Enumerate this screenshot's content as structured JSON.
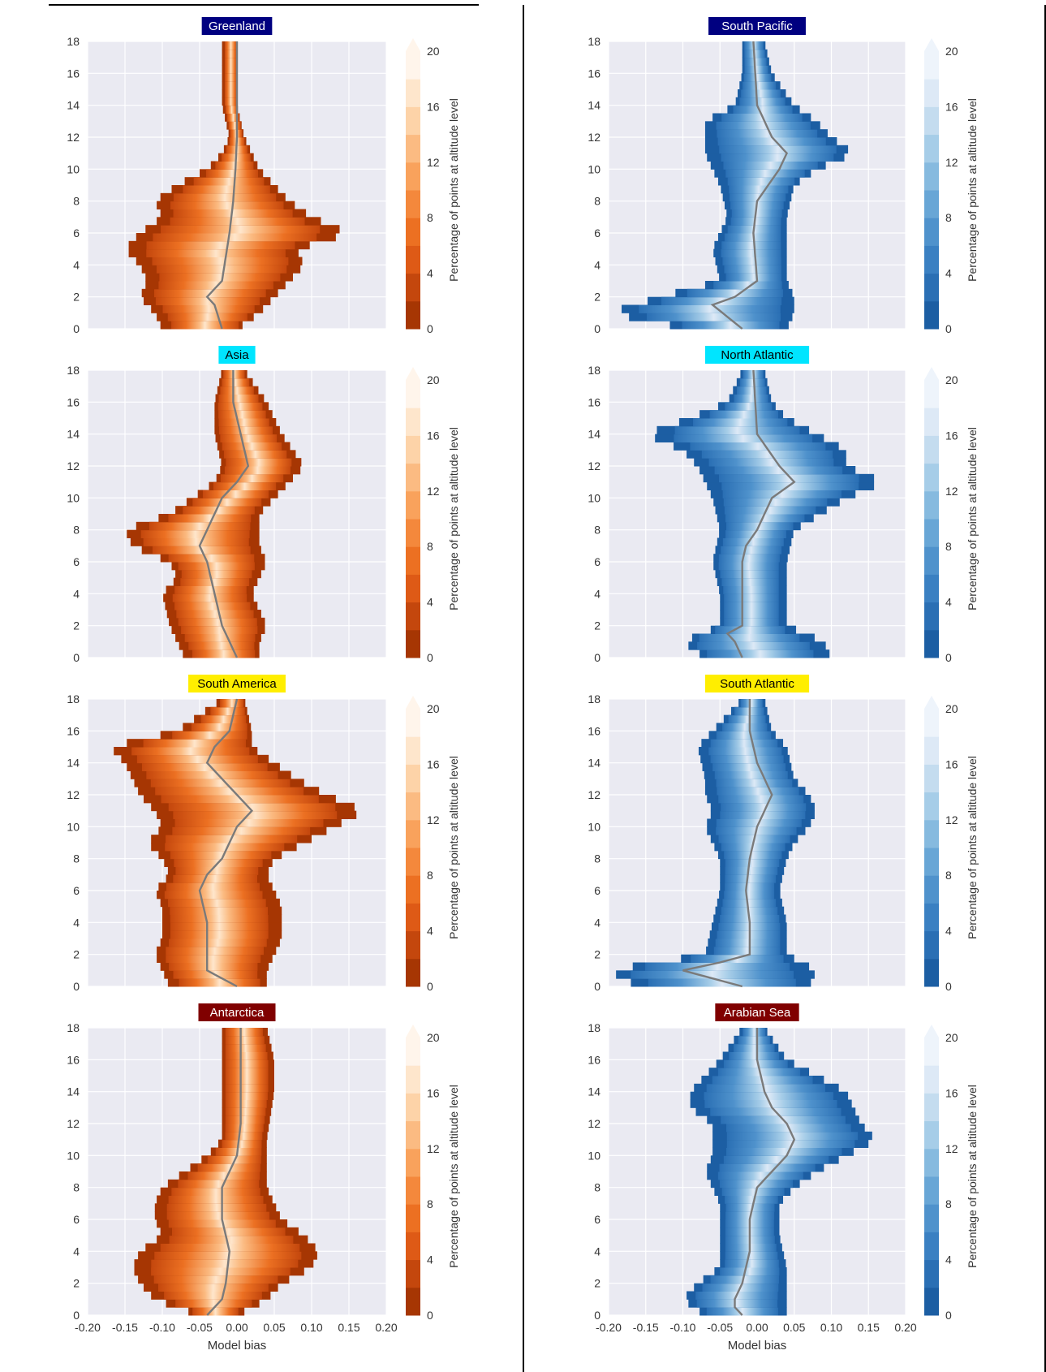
{
  "figure": {
    "xlabel": "Model bias",
    "colorbar_label": "Percentage of points at altitude level"
  },
  "colors": {
    "plot_background": "#eaeaf2",
    "grid": "#ffffff",
    "mean_line": "#7a7a7a",
    "divider": "#000000"
  },
  "chart_data": [
    {
      "type": "heatmap",
      "title": "Greenland",
      "title_bg": "#000080",
      "title_fg": "#ffffff",
      "palette": "orange",
      "xlim": [
        -0.2,
        0.2
      ],
      "ylim": [
        0,
        18
      ],
      "xticks": [
        "-0.20",
        "-0.15",
        "-0.10",
        "-0.05",
        "0.00",
        "0.05",
        "0.10",
        "0.15",
        "0.20"
      ],
      "yticks": [
        "0",
        "2",
        "4",
        "6",
        "8",
        "10",
        "12",
        "14",
        "16",
        "18"
      ],
      "colorbar_ticks": [
        "0",
        "4",
        "8",
        "12",
        "16",
        "20"
      ],
      "show_xticks": false,
      "show_xlabel": false,
      "profile": [
        [
          0,
          -0.1,
          0.0
        ],
        [
          1,
          -0.11,
          0.03
        ],
        [
          2,
          -0.13,
          0.05
        ],
        [
          3,
          -0.12,
          0.07
        ],
        [
          4,
          -0.13,
          0.09
        ],
        [
          5,
          -0.15,
          0.08
        ],
        [
          6,
          -0.13,
          0.15
        ],
        [
          7,
          -0.1,
          0.1
        ],
        [
          8,
          -0.11,
          0.07
        ],
        [
          9,
          -0.08,
          0.05
        ],
        [
          10,
          -0.04,
          0.03
        ],
        [
          11,
          -0.02,
          0.02
        ],
        [
          12,
          -0.01,
          0.01
        ],
        [
          14,
          -0.02,
          0.0
        ],
        [
          18,
          -0.02,
          0.0
        ]
      ],
      "mean_line": [
        [
          0,
          -0.02
        ],
        [
          1.5,
          -0.03
        ],
        [
          2,
          -0.04
        ],
        [
          3,
          -0.02
        ],
        [
          6,
          -0.01
        ],
        [
          8,
          -0.005
        ],
        [
          10,
          -0.002
        ],
        [
          12,
          0.0
        ],
        [
          18,
          0.0
        ]
      ]
    },
    {
      "type": "heatmap",
      "title": "South Pacific",
      "title_bg": "#000080",
      "title_fg": "#ffffff",
      "palette": "blue",
      "xlim": [
        -0.2,
        0.2
      ],
      "ylim": [
        0,
        18
      ],
      "xticks": [
        "-0.20",
        "-0.15",
        "-0.10",
        "-0.05",
        "0.00",
        "0.05",
        "0.10",
        "0.15",
        "0.20"
      ],
      "yticks": [
        "0",
        "2",
        "4",
        "6",
        "8",
        "10",
        "12",
        "14",
        "16",
        "18"
      ],
      "colorbar_ticks": [
        "0",
        "4",
        "8",
        "12",
        "16",
        "20"
      ],
      "show_xticks": false,
      "show_xlabel": false,
      "profile": [
        [
          0,
          -0.09,
          0.04
        ],
        [
          1,
          -0.2,
          0.05
        ],
        [
          2,
          -0.13,
          0.05
        ],
        [
          3,
          -0.05,
          0.04
        ],
        [
          5,
          -0.06,
          0.04
        ],
        [
          7,
          -0.04,
          0.04
        ],
        [
          9,
          -0.05,
          0.05
        ],
        [
          10,
          -0.06,
          0.08
        ],
        [
          11,
          -0.07,
          0.13
        ],
        [
          12,
          -0.07,
          0.1
        ],
        [
          13,
          -0.07,
          0.08
        ],
        [
          14,
          -0.03,
          0.05
        ],
        [
          16,
          -0.02,
          0.02
        ],
        [
          18,
          -0.02,
          0.01
        ]
      ],
      "mean_line": [
        [
          0,
          -0.02
        ],
        [
          1.5,
          -0.06
        ],
        [
          2,
          -0.03
        ],
        [
          3,
          0.0
        ],
        [
          6,
          -0.005
        ],
        [
          8,
          0.0
        ],
        [
          10,
          0.03
        ],
        [
          11,
          0.04
        ],
        [
          12,
          0.02
        ],
        [
          14,
          0.0
        ],
        [
          18,
          -0.005
        ]
      ]
    },
    {
      "type": "heatmap",
      "title": "Asia",
      "title_bg": "#00e5ff",
      "title_fg": "#000000",
      "palette": "orange",
      "xlim": [
        -0.2,
        0.2
      ],
      "ylim": [
        0,
        18
      ],
      "xticks": [
        "-0.20",
        "-0.15",
        "-0.10",
        "-0.05",
        "0.00",
        "0.05",
        "0.10",
        "0.15",
        "0.20"
      ],
      "yticks": [
        "0",
        "2",
        "4",
        "6",
        "8",
        "10",
        "12",
        "14",
        "16",
        "18"
      ],
      "colorbar_ticks": [
        "0",
        "4",
        "8",
        "12",
        "16",
        "20"
      ],
      "show_xticks": false,
      "show_xlabel": false,
      "profile": [
        [
          0,
          -0.07,
          0.03
        ],
        [
          1,
          -0.08,
          0.03
        ],
        [
          2,
          -0.09,
          0.04
        ],
        [
          4,
          -0.1,
          0.02
        ],
        [
          5,
          -0.08,
          0.03
        ],
        [
          6,
          -0.09,
          0.04
        ],
        [
          7,
          -0.14,
          0.03
        ],
        [
          8,
          -0.15,
          0.03
        ],
        [
          9,
          -0.09,
          0.03
        ],
        [
          10,
          -0.06,
          0.05
        ],
        [
          11,
          -0.03,
          0.07
        ],
        [
          12,
          -0.02,
          0.09
        ],
        [
          14,
          -0.03,
          0.06
        ],
        [
          16,
          -0.03,
          0.04
        ],
        [
          18,
          -0.02,
          0.01
        ]
      ],
      "mean_line": [
        [
          0,
          0.0
        ],
        [
          2,
          -0.02
        ],
        [
          4,
          -0.03
        ],
        [
          6,
          -0.04
        ],
        [
          7,
          -0.05
        ],
        [
          8,
          -0.04
        ],
        [
          10,
          -0.02
        ],
        [
          11,
          0.0
        ],
        [
          12,
          0.015
        ],
        [
          14,
          0.005
        ],
        [
          16,
          -0.005
        ],
        [
          18,
          -0.005
        ]
      ]
    },
    {
      "type": "heatmap",
      "title": "North Atlantic",
      "title_bg": "#00e5ff",
      "title_fg": "#000000",
      "palette": "blue",
      "xlim": [
        -0.2,
        0.2
      ],
      "ylim": [
        0,
        18
      ],
      "xticks": [
        "-0.20",
        "-0.15",
        "-0.10",
        "-0.05",
        "0.00",
        "0.05",
        "0.10",
        "0.15",
        "0.20"
      ],
      "yticks": [
        "0",
        "2",
        "4",
        "6",
        "8",
        "10",
        "12",
        "14",
        "16",
        "18"
      ],
      "colorbar_ticks": [
        "0",
        "4",
        "8",
        "12",
        "16",
        "20"
      ],
      "show_xticks": false,
      "show_xlabel": false,
      "profile": [
        [
          0,
          -0.07,
          0.1
        ],
        [
          1,
          -0.1,
          0.09
        ],
        [
          2,
          -0.05,
          0.04
        ],
        [
          4,
          -0.05,
          0.04
        ],
        [
          6,
          -0.06,
          0.04
        ],
        [
          8,
          -0.05,
          0.05
        ],
        [
          10,
          -0.06,
          0.12
        ],
        [
          11,
          -0.07,
          0.17
        ],
        [
          12,
          -0.08,
          0.12
        ],
        [
          13,
          -0.1,
          0.12
        ],
        [
          14,
          -0.15,
          0.08
        ],
        [
          15,
          -0.09,
          0.04
        ],
        [
          16,
          -0.04,
          0.02
        ],
        [
          18,
          -0.02,
          0.01
        ]
      ],
      "mean_line": [
        [
          0,
          -0.02
        ],
        [
          1,
          -0.03
        ],
        [
          1.5,
          -0.04
        ],
        [
          2,
          -0.02
        ],
        [
          4,
          -0.02
        ],
        [
          6,
          -0.02
        ],
        [
          7,
          -0.015
        ],
        [
          8,
          0.0
        ],
        [
          10,
          0.02
        ],
        [
          11,
          0.05
        ],
        [
          12,
          0.03
        ],
        [
          14,
          0.0
        ],
        [
          18,
          -0.005
        ]
      ]
    },
    {
      "type": "heatmap",
      "title": "South America",
      "title_bg": "#ffee00",
      "title_fg": "#000000",
      "palette": "orange",
      "xlim": [
        -0.2,
        0.2
      ],
      "ylim": [
        0,
        18
      ],
      "xticks": [
        "-0.20",
        "-0.15",
        "-0.10",
        "-0.05",
        "0.00",
        "0.05",
        "0.10",
        "0.15",
        "0.20"
      ],
      "yticks": [
        "0",
        "2",
        "4",
        "6",
        "8",
        "10",
        "12",
        "14",
        "16",
        "18"
      ],
      "colorbar_ticks": [
        "0",
        "4",
        "8",
        "12",
        "16",
        "20"
      ],
      "show_xticks": false,
      "show_xlabel": false,
      "profile": [
        [
          0,
          -0.09,
          0.04
        ],
        [
          1,
          -0.1,
          0.04
        ],
        [
          2,
          -0.11,
          0.05
        ],
        [
          3,
          -0.1,
          0.06
        ],
        [
          5,
          -0.1,
          0.06
        ],
        [
          6,
          -0.11,
          0.05
        ],
        [
          7,
          -0.09,
          0.04
        ],
        [
          8,
          -0.1,
          0.05
        ],
        [
          9,
          -0.12,
          0.09
        ],
        [
          10,
          -0.1,
          0.13
        ],
        [
          11,
          -0.11,
          0.17
        ],
        [
          12,
          -0.13,
          0.12
        ],
        [
          13,
          -0.14,
          0.08
        ],
        [
          14,
          -0.15,
          0.05
        ],
        [
          15,
          -0.17,
          0.02
        ],
        [
          16,
          -0.08,
          0.02
        ],
        [
          18,
          -0.02,
          0.01
        ]
      ],
      "mean_line": [
        [
          0,
          0.0
        ],
        [
          0.5,
          -0.02
        ],
        [
          1,
          -0.04
        ],
        [
          4,
          -0.04
        ],
        [
          6,
          -0.05
        ],
        [
          7,
          -0.04
        ],
        [
          8,
          -0.02
        ],
        [
          10,
          0.0
        ],
        [
          11,
          0.02
        ],
        [
          12,
          0.0
        ],
        [
          13,
          -0.02
        ],
        [
          14,
          -0.04
        ],
        [
          15,
          -0.03
        ],
        [
          16,
          -0.01
        ],
        [
          18,
          0.0
        ]
      ]
    },
    {
      "type": "heatmap",
      "title": "South Atlantic",
      "title_bg": "#ffee00",
      "title_fg": "#000000",
      "palette": "blue",
      "xlim": [
        -0.2,
        0.2
      ],
      "ylim": [
        0,
        18
      ],
      "xticks": [
        "-0.20",
        "-0.15",
        "-0.10",
        "-0.05",
        "0.00",
        "0.05",
        "0.10",
        "0.15",
        "0.20"
      ],
      "yticks": [
        "0",
        "2",
        "4",
        "6",
        "8",
        "10",
        "12",
        "14",
        "16",
        "18"
      ],
      "colorbar_ticks": [
        "0",
        "4",
        "8",
        "12",
        "16",
        "20"
      ],
      "show_xticks": false,
      "show_xlabel": false,
      "profile": [
        [
          0,
          -0.16,
          0.07
        ],
        [
          1,
          -0.2,
          0.08
        ],
        [
          2,
          -0.07,
          0.04
        ],
        [
          4,
          -0.06,
          0.04
        ],
        [
          6,
          -0.05,
          0.03
        ],
        [
          8,
          -0.05,
          0.04
        ],
        [
          9,
          -0.06,
          0.05
        ],
        [
          10,
          -0.07,
          0.07
        ],
        [
          11,
          -0.06,
          0.08
        ],
        [
          12,
          -0.07,
          0.07
        ],
        [
          13,
          -0.07,
          0.05
        ],
        [
          15,
          -0.08,
          0.04
        ],
        [
          16,
          -0.06,
          0.02
        ],
        [
          18,
          -0.02,
          0.01
        ]
      ],
      "mean_line": [
        [
          0,
          -0.02
        ],
        [
          0.5,
          -0.06
        ],
        [
          1,
          -0.1
        ],
        [
          1.5,
          -0.05
        ],
        [
          2,
          -0.01
        ],
        [
          4,
          -0.01
        ],
        [
          6,
          -0.015
        ],
        [
          8,
          -0.01
        ],
        [
          10,
          0.0
        ],
        [
          11,
          0.01
        ],
        [
          12,
          0.02
        ],
        [
          14,
          0.0
        ],
        [
          16,
          -0.01
        ],
        [
          18,
          -0.01
        ]
      ]
    },
    {
      "type": "heatmap",
      "title": "Antarctica",
      "title_bg": "#800000",
      "title_fg": "#ffffff",
      "palette": "orange",
      "xlim": [
        -0.2,
        0.2
      ],
      "ylim": [
        0,
        18
      ],
      "xticks": [
        "-0.20",
        "-0.15",
        "-0.10",
        "-0.05",
        "0.00",
        "0.05",
        "0.10",
        "0.15",
        "0.20"
      ],
      "yticks": [
        "0",
        "2",
        "4",
        "6",
        "8",
        "10",
        "12",
        "14",
        "16",
        "18"
      ],
      "colorbar_ticks": [
        "0",
        "4",
        "8",
        "12",
        "16",
        "20"
      ],
      "show_xticks": true,
      "show_xlabel": true,
      "profile": [
        [
          0,
          -0.05,
          0.0
        ],
        [
          1,
          -0.11,
          0.04
        ],
        [
          2,
          -0.13,
          0.06
        ],
        [
          3,
          -0.14,
          0.1
        ],
        [
          4,
          -0.13,
          0.11
        ],
        [
          5,
          -0.1,
          0.09
        ],
        [
          6,
          -0.11,
          0.06
        ],
        [
          7,
          -0.11,
          0.05
        ],
        [
          8,
          -0.1,
          0.04
        ],
        [
          9,
          -0.07,
          0.04
        ],
        [
          10,
          -0.04,
          0.04
        ],
        [
          11,
          -0.02,
          0.04
        ],
        [
          14,
          -0.02,
          0.05
        ],
        [
          16,
          -0.02,
          0.05
        ],
        [
          18,
          -0.02,
          0.04
        ]
      ],
      "mean_line": [
        [
          0,
          -0.04
        ],
        [
          1,
          -0.02
        ],
        [
          2,
          -0.015
        ],
        [
          4,
          -0.01
        ],
        [
          6,
          -0.02
        ],
        [
          8,
          -0.02
        ],
        [
          10,
          0.0
        ],
        [
          12,
          0.005
        ],
        [
          14,
          0.005
        ],
        [
          18,
          0.005
        ]
      ]
    },
    {
      "type": "heatmap",
      "title": "Arabian Sea",
      "title_bg": "#800000",
      "title_fg": "#ffffff",
      "palette": "blue",
      "xlim": [
        -0.2,
        0.2
      ],
      "ylim": [
        0,
        18
      ],
      "xticks": [
        "-0.20",
        "-0.15",
        "-0.10",
        "-0.05",
        "0.00",
        "0.05",
        "0.10",
        "0.15",
        "0.20"
      ],
      "yticks": [
        "0",
        "2",
        "4",
        "6",
        "8",
        "10",
        "12",
        "14",
        "16",
        "18"
      ],
      "colorbar_ticks": [
        "0",
        "4",
        "8",
        "12",
        "16",
        "20"
      ],
      "show_xticks": true,
      "show_xlabel": true,
      "profile": [
        [
          0,
          -0.07,
          0.04
        ],
        [
          1,
          -0.1,
          0.04
        ],
        [
          2,
          -0.08,
          0.04
        ],
        [
          3,
          -0.05,
          0.04
        ],
        [
          5,
          -0.05,
          0.03
        ],
        [
          7,
          -0.05,
          0.03
        ],
        [
          8,
          -0.06,
          0.05
        ],
        [
          9,
          -0.07,
          0.08
        ],
        [
          10,
          -0.06,
          0.12
        ],
        [
          11,
          -0.06,
          0.16
        ],
        [
          12,
          -0.06,
          0.14
        ],
        [
          13,
          -0.09,
          0.13
        ],
        [
          14,
          -0.09,
          0.12
        ],
        [
          15,
          -0.07,
          0.08
        ],
        [
          16,
          -0.05,
          0.04
        ],
        [
          18,
          -0.02,
          0.01
        ]
      ],
      "mean_line": [
        [
          0,
          -0.02
        ],
        [
          0.5,
          -0.03
        ],
        [
          1,
          -0.03
        ],
        [
          2,
          -0.02
        ],
        [
          4,
          -0.01
        ],
        [
          6,
          -0.01
        ],
        [
          8,
          0.0
        ],
        [
          9,
          0.02
        ],
        [
          10,
          0.04
        ],
        [
          11,
          0.05
        ],
        [
          12,
          0.04
        ],
        [
          13,
          0.02
        ],
        [
          14,
          0.01
        ],
        [
          16,
          0.0
        ],
        [
          18,
          0.0
        ]
      ]
    }
  ]
}
